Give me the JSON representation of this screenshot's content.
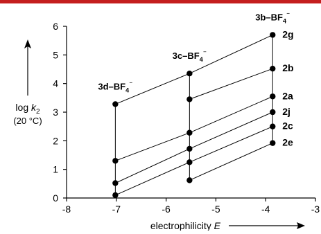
{
  "header_bar_color": "#c41e1e",
  "chart_data": {
    "type": "line",
    "title": "",
    "xlabel": "electrophilicity E",
    "ylabel": "log k2 (20 °C)",
    "xlim": [
      -8,
      -3
    ],
    "ylim": [
      0,
      6
    ],
    "xticks": [
      -8,
      -7,
      -6,
      -5,
      -4,
      -3
    ],
    "yticks": [
      0,
      1,
      2,
      3,
      4,
      5,
      6
    ],
    "grid": false,
    "x": [
      -7.02,
      -5.53,
      -3.86
    ],
    "electrophile_labels": [
      "3d–BF4⁻",
      "3c–BF4⁻",
      "3b–BF4⁻"
    ],
    "series": [
      {
        "name": "2g",
        "x": [
          -7.02,
          -5.53,
          -3.86
        ],
        "values": [
          3.28,
          4.35,
          5.7
        ]
      },
      {
        "name": "2b",
        "x": [
          -5.53,
          -3.86
        ],
        "values": [
          3.45,
          4.52
        ]
      },
      {
        "name": "2a",
        "x": [
          -7.02,
          -5.53,
          -3.86
        ],
        "values": [
          1.3,
          2.28,
          3.55
        ]
      },
      {
        "name": "2j",
        "x": [
          -7.02,
          -5.53,
          -3.86
        ],
        "values": [
          0.52,
          1.72,
          3.0
        ]
      },
      {
        "name": "2c",
        "x": [
          -7.02,
          -5.53,
          -3.86
        ],
        "values": [
          0.1,
          1.25,
          2.5
        ]
      },
      {
        "name": "2e",
        "x": [
          -5.53,
          -3.86
        ],
        "values": [
          0.62,
          1.92
        ]
      }
    ]
  }
}
